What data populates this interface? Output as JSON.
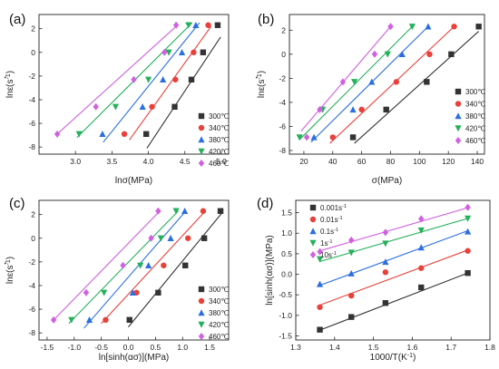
{
  "chart_data": [
    {
      "id": "a",
      "panel_label": "(a)",
      "type": "scatter",
      "xlabel": "lnσ(MPa)",
      "ylabel_base": "ln",
      "ylabel_unit": "(s",
      "ylabel_exp": "-1",
      "ylabel_close": ")",
      "xlim": [
        2.5,
        5.1
      ],
      "ylim": [
        -8.6,
        3.2
      ],
      "xticks": [
        3.0,
        3.5,
        4.0,
        4.5,
        5.0
      ],
      "xtick_labels": [
        "3.0",
        "3.5",
        "4.0",
        "4.5",
        "5.0"
      ],
      "yticks": [
        -8,
        -6,
        -4,
        -2,
        0,
        2
      ],
      "ytick_labels": [
        "-8",
        "-6",
        "-4",
        "-2",
        "0",
        "2"
      ],
      "legend_position": "bottom-right",
      "series": [
        {
          "name": "300℃",
          "color": "#333333",
          "marker": "square",
          "x": [
            3.97,
            4.36,
            4.59,
            4.75,
            4.95
          ],
          "y": [
            -6.9,
            -4.6,
            -2.3,
            0.0,
            2.3
          ],
          "fit": [
            [
              3.98,
              -8.1
            ],
            [
              4.99,
              1.3
            ]
          ]
        },
        {
          "name": "340℃",
          "color": "#e8413a",
          "marker": "circle",
          "x": [
            3.67,
            4.05,
            4.37,
            4.62,
            4.82
          ],
          "y": [
            -6.9,
            -4.6,
            -2.3,
            0.0,
            2.3
          ],
          "fit": [
            [
              3.74,
              -7.4
            ],
            [
              4.86,
              2.2
            ]
          ]
        },
        {
          "name": "380℃",
          "color": "#2b6fe0",
          "marker": "triangle-up",
          "x": [
            3.37,
            3.92,
            4.2,
            4.46,
            4.65
          ],
          "y": [
            -6.9,
            -4.6,
            -2.3,
            0.0,
            2.3
          ],
          "fit": [
            [
              3.38,
              -7.6
            ],
            [
              4.7,
              2.5
            ]
          ]
        },
        {
          "name": "420℃",
          "color": "#25b05a",
          "marker": "triangle-down",
          "x": [
            3.05,
            3.55,
            4.0,
            4.28,
            4.55
          ],
          "y": [
            -6.9,
            -4.6,
            -2.3,
            0.0,
            2.3
          ],
          "fit": [
            [
              3.02,
              -7.2
            ],
            [
              4.6,
              2.5
            ]
          ]
        },
        {
          "name": "460℃",
          "color": "#d060e0",
          "marker": "diamond",
          "x": [
            2.75,
            3.28,
            3.8,
            4.22,
            4.38
          ],
          "y": [
            -6.9,
            -4.6,
            -2.3,
            0.0,
            2.3
          ],
          "fit": [
            [
              2.75,
              -6.9
            ],
            [
              4.38,
              2.2
            ]
          ]
        }
      ]
    },
    {
      "id": "b",
      "panel_label": "(b)",
      "type": "scatter",
      "xlabel": "σ(MPa)",
      "ylabel_base": "ln",
      "ylabel_unit": "(s",
      "ylabel_exp": "-1",
      "ylabel_close": ")",
      "xlim": [
        10,
        145
      ],
      "ylim": [
        -8.3,
        3.3
      ],
      "xticks": [
        20,
        40,
        60,
        80,
        100,
        120,
        140
      ],
      "xtick_labels": [
        "20",
        "40",
        "60",
        "80",
        "100",
        "120",
        "140"
      ],
      "yticks": [
        -8,
        -6,
        -4,
        -2,
        0,
        2
      ],
      "ytick_labels": [
        "-8",
        "-6",
        "-4",
        "-2",
        "0",
        "2"
      ],
      "legend_position": "bottom-right",
      "series": [
        {
          "name": "300℃",
          "color": "#333333",
          "marker": "square",
          "x": [
            54,
            77,
            105,
            122,
            141
          ],
          "y": [
            -6.9,
            -4.6,
            -2.3,
            0.0,
            2.3
          ],
          "fit": [
            [
              55,
              -7.4
            ],
            [
              141,
              1.9
            ]
          ]
        },
        {
          "name": "340℃",
          "color": "#e8413a",
          "marker": "circle",
          "x": [
            40,
            60,
            84,
            107,
            124
          ],
          "y": [
            -6.9,
            -4.6,
            -2.3,
            0.0,
            2.3
          ],
          "fit": [
            [
              38,
              -7.4
            ],
            [
              124,
              2.3
            ]
          ]
        },
        {
          "name": "380℃",
          "color": "#2b6fe0",
          "marker": "triangle-up",
          "x": [
            27,
            54,
            67,
            88,
            106
          ],
          "y": [
            -6.9,
            -4.6,
            -2.3,
            0.0,
            2.3
          ],
          "fit": [
            [
              25,
              -7.3
            ],
            [
              106,
              2.3
            ]
          ]
        },
        {
          "name": "420℃",
          "color": "#25b05a",
          "marker": "triangle-down",
          "x": [
            17,
            33,
            55,
            78,
            95
          ],
          "y": [
            -6.9,
            -4.6,
            -2.3,
            0.0,
            2.3
          ],
          "fit": [
            [
              17,
              -7.1
            ],
            [
              95,
              2.3
            ]
          ]
        },
        {
          "name": "460℃",
          "color": "#d060e0",
          "marker": "diamond",
          "x": [
            22,
            31,
            47,
            69,
            80
          ],
          "y": [
            -6.9,
            -4.6,
            -2.3,
            0.0,
            2.3
          ],
          "fit": [
            [
              18,
              -6.4
            ],
            [
              80,
              2.3
            ]
          ]
        }
      ]
    },
    {
      "id": "c",
      "panel_label": "(c)",
      "type": "scatter",
      "xlabel": "ln[sinh(ασ)](MPa)",
      "ylabel_base": "ln",
      "ylabel_unit": "(s",
      "ylabel_exp": "-1",
      "ylabel_close": ")",
      "xlim": [
        -1.65,
        1.85
      ],
      "ylim": [
        -8.6,
        3.2
      ],
      "xticks": [
        -1.5,
        -1.0,
        -0.5,
        0.0,
        0.5,
        1.0,
        1.5
      ],
      "xtick_labels": [
        "-1.5",
        "-1.0",
        "-0.5",
        "0.0",
        "0.5",
        "1.0",
        "1.5"
      ],
      "yticks": [
        -8,
        -6,
        -4,
        -2,
        0,
        2
      ],
      "ytick_labels": [
        "-8",
        "-6",
        "-4",
        "-2",
        "0",
        "2"
      ],
      "legend_position": "bottom-right",
      "series": [
        {
          "name": "300℃",
          "color": "#333333",
          "marker": "square",
          "x": [
            0.02,
            0.55,
            1.05,
            1.4,
            1.7
          ],
          "y": [
            -6.9,
            -4.6,
            -2.3,
            0.0,
            2.3
          ],
          "fit": [
            [
              0.0,
              -7.5
            ],
            [
              1.72,
              2.1
            ]
          ]
        },
        {
          "name": "340℃",
          "color": "#e8413a",
          "marker": "circle",
          "x": [
            -0.42,
            0.15,
            0.65,
            1.1,
            1.38
          ],
          "y": [
            -6.9,
            -4.6,
            -2.3,
            0.0,
            2.3
          ],
          "fit": [
            [
              -0.5,
              -7.2
            ],
            [
              1.42,
              2.3
            ]
          ]
        },
        {
          "name": "380℃",
          "color": "#2b6fe0",
          "marker": "triangle-up",
          "x": [
            -0.72,
            0.08,
            0.37,
            0.78,
            1.04
          ],
          "y": [
            -6.9,
            -4.6,
            -2.3,
            0.0,
            2.3
          ],
          "fit": [
            [
              -0.82,
              -7.6
            ],
            [
              1.06,
              2.3
            ]
          ]
        },
        {
          "name": "420℃",
          "color": "#25b05a",
          "marker": "triangle-down",
          "x": [
            -1.05,
            -0.45,
            0.22,
            0.6,
            0.88
          ],
          "y": [
            -6.9,
            -4.6,
            -2.3,
            0.0,
            2.3
          ],
          "fit": [
            [
              -1.1,
              -7.2
            ],
            [
              0.92,
              2.3
            ]
          ]
        },
        {
          "name": "460℃",
          "color": "#d060e0",
          "marker": "diamond",
          "x": [
            -1.38,
            -0.78,
            -0.1,
            0.42,
            0.55
          ],
          "y": [
            -6.9,
            -4.6,
            -2.3,
            0.0,
            2.3
          ],
          "fit": [
            [
              -1.4,
              -7.0
            ],
            [
              0.58,
              2.3
            ]
          ]
        }
      ]
    },
    {
      "id": "d",
      "panel_label": "(d)",
      "type": "scatter",
      "xlabel_base": "1000/T(K",
      "xlabel_exp": "-1",
      "xlabel_close": ")",
      "ylabel": "ln[sinh(ασ)](MPa)",
      "xlim": [
        1.3,
        1.8
      ],
      "ylim": [
        -1.6,
        1.8
      ],
      "xticks": [
        1.3,
        1.4,
        1.5,
        1.6,
        1.7,
        1.8
      ],
      "xtick_labels": [
        "1.3",
        "1.4",
        "1.5",
        "1.6",
        "1.7",
        "1.8"
      ],
      "yticks": [
        -1.5,
        -1.0,
        -0.5,
        0.0,
        0.5,
        1.0,
        1.5
      ],
      "ytick_labels": [
        "-1.5",
        "-1.0",
        "-0.5",
        "0.0",
        "0.5",
        "1.0",
        "1.5"
      ],
      "legend_position": "top-left",
      "series": [
        {
          "name_base": "0.001s",
          "name_exp": "-1",
          "color": "#333333",
          "marker": "square",
          "x": [
            1.362,
            1.443,
            1.531,
            1.623,
            1.743
          ],
          "y": [
            -1.35,
            -1.04,
            -0.7,
            -0.32,
            0.03
          ],
          "fit": [
            [
              1.362,
              -1.36
            ],
            [
              1.743,
              0.03
            ]
          ]
        },
        {
          "name_base": "0.01s",
          "name_exp": "-1",
          "color": "#e8413a",
          "marker": "circle",
          "x": [
            1.362,
            1.443,
            1.531,
            1.623,
            1.743
          ],
          "y": [
            -0.8,
            -0.52,
            0.05,
            0.15,
            0.57
          ],
          "fit": [
            [
              1.362,
              -0.75
            ],
            [
              1.743,
              0.59
            ]
          ]
        },
        {
          "name_base": "0.1s",
          "name_exp": "-1",
          "color": "#2b6fe0",
          "marker": "triangle-up",
          "x": [
            1.362,
            1.443,
            1.531,
            1.623,
            1.743
          ],
          "y": [
            -0.24,
            0.02,
            0.3,
            0.65,
            1.04
          ],
          "fit": [
            [
              1.362,
              -0.27
            ],
            [
              1.743,
              1.06
            ]
          ]
        },
        {
          "name_base": "1s",
          "name_exp": "-1",
          "color": "#25b05a",
          "marker": "triangle-down",
          "x": [
            1.362,
            1.443,
            1.531,
            1.623,
            1.743
          ],
          "y": [
            0.37,
            0.53,
            0.75,
            1.07,
            1.36
          ],
          "fit": [
            [
              1.362,
              0.31
            ],
            [
              1.743,
              1.36
            ]
          ]
        },
        {
          "name_base": "10s",
          "name_exp": "-1",
          "color": "#d060e0",
          "marker": "diamond",
          "x": [
            1.362,
            1.443,
            1.531,
            1.623,
            1.743
          ],
          "y": [
            0.55,
            0.83,
            1.02,
            1.35,
            1.63
          ],
          "fit": [
            [
              1.362,
              0.57
            ],
            [
              1.743,
              1.62
            ]
          ]
        }
      ]
    }
  ]
}
